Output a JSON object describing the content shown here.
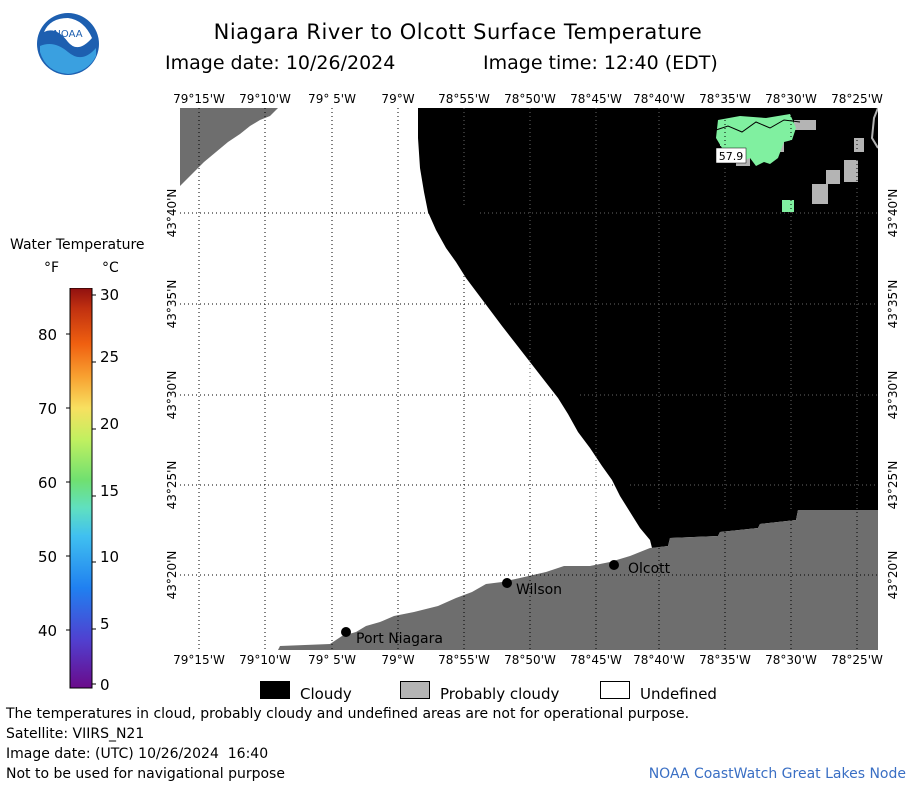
{
  "header": {
    "title": "Niagara River to Olcott Surface Temperature",
    "date_label": "Image date: 10/26/2024",
    "time_label": "Image time: 12:40 (EDT)"
  },
  "logo": {
    "text": "NOAA",
    "icon": "noaa-logo-icon"
  },
  "colorbar": {
    "title": "Water Temperature",
    "unit_f": "°F",
    "unit_c": "°C",
    "f_ticks": [
      "80",
      "70",
      "60",
      "50",
      "40"
    ],
    "c_ticks": [
      "30",
      "25",
      "20",
      "15",
      "10",
      "5",
      "0"
    ]
  },
  "map": {
    "lon_labels": [
      "79°15'W",
      "79°10'W",
      "79° 5'W",
      "79°W",
      "78°55'W",
      "78°50'W",
      "78°45'W",
      "78°40'W",
      "78°35'W",
      "78°30'W",
      "78°25'W"
    ],
    "lat_labels": [
      "43°40'N",
      "43°35'N",
      "43°30'N",
      "43°25'N",
      "43°20'N"
    ],
    "places": [
      "Olcott",
      "Wilson",
      "Port Niagara"
    ],
    "temp_label": "57.9",
    "colors": {
      "cloudy": "#000000",
      "probably_cloudy": "#b4b4b4",
      "land": "#6e6e6e",
      "undefined": "#ffffff",
      "water_57": "#80f0a0"
    }
  },
  "legend": {
    "cloudy": "Cloudy",
    "probably_cloudy": "Probably cloudy",
    "undefined": "Undefined"
  },
  "footer": {
    "disclaimer": "The temperatures in cloud, probably cloudy and undefined areas are not for operational purpose.",
    "satellite": "Satellite: VIIRS_N21",
    "utc_date": "Image date: (UTC) 10/26/2024  16:40",
    "nav": "Not to be used for navigational purpose",
    "credit": "NOAA CoastWatch Great Lakes Node"
  }
}
